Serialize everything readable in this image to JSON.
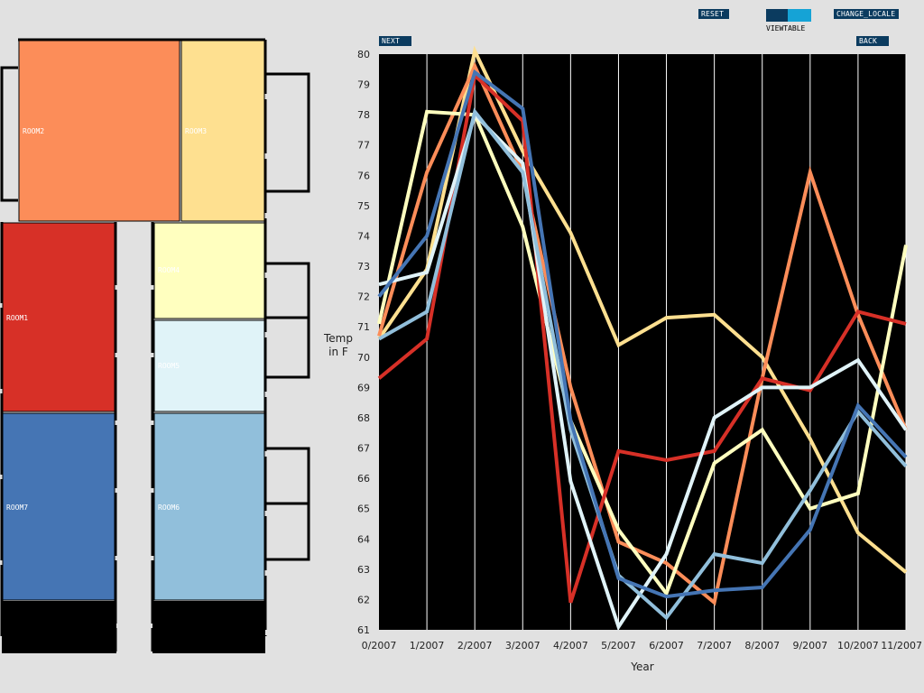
{
  "controls": {
    "next_label": "NEXT",
    "reset_label": "RESET",
    "change_locale_label": "CHANGE_LOCALE",
    "back_label": "BACK",
    "viewtable_label": "VIEWTABLE",
    "viewtable_colors": [
      "#0b3b5f",
      "#15a3d6"
    ]
  },
  "floorplan": {
    "rooms": [
      {
        "label": "ROOM2",
        "color": "#fc8d59"
      },
      {
        "label": "ROOM3",
        "color": "#fee090"
      },
      {
        "label": "ROOM1",
        "color": "#d73027"
      },
      {
        "label": "ROOM4",
        "color": "#ffffbf"
      },
      {
        "label": "ROOM5",
        "color": "#e0f3f8"
      },
      {
        "label": "ROOM7",
        "color": "#4575b4"
      },
      {
        "label": "ROOM6",
        "color": "#91bfdb"
      }
    ]
  },
  "chart_data": {
    "type": "line",
    "xlabel": "Year",
    "ylabel": "Temp in F",
    "categories": [
      "0/2007",
      "1/2007",
      "2/2007",
      "3/2007",
      "4/2007",
      "5/2007",
      "6/2007",
      "7/2007",
      "8/2007",
      "9/2007",
      "10/2007",
      "11/2007"
    ],
    "ylim": [
      61,
      80
    ],
    "yticks": [
      61,
      62,
      63,
      64,
      65,
      66,
      67,
      68,
      69,
      70,
      71,
      72,
      73,
      74,
      75,
      76,
      77,
      78,
      79,
      80
    ],
    "background": "#000000",
    "grid": "vertical",
    "series": [
      {
        "color": "#fee090",
        "values": [
          70.6,
          72.9,
          80.1,
          76.8,
          74.1,
          70.4,
          71.3,
          71.4,
          70.0,
          67.3,
          64.2,
          62.9
        ]
      },
      {
        "color": "#fc8d59",
        "values": [
          70.7,
          76.1,
          79.6,
          76.1,
          69.0,
          63.9,
          63.2,
          61.9,
          69.3,
          76.1,
          71.4,
          67.6
        ]
      },
      {
        "color": "#ffffbf",
        "values": [
          71.1,
          78.1,
          78.0,
          74.3,
          67.9,
          64.3,
          62.2,
          66.5,
          67.6,
          65.0,
          65.5,
          73.7
        ]
      },
      {
        "color": "#d73027",
        "values": [
          69.3,
          70.6,
          79.3,
          77.8,
          61.9,
          66.9,
          66.6,
          66.9,
          69.3,
          68.9,
          71.5,
          71.1
        ]
      },
      {
        "color": "#e0f3f8",
        "values": [
          72.4,
          72.8,
          78.0,
          76.4,
          65.9,
          61.1,
          63.5,
          68.0,
          69.0,
          69.0,
          69.9,
          67.6
        ]
      },
      {
        "color": "#91bfdb",
        "values": [
          70.6,
          71.5,
          78.1,
          76.1,
          67.6,
          62.8,
          61.4,
          63.5,
          63.2,
          65.6,
          68.2,
          66.4
        ]
      },
      {
        "color": "#4575b4",
        "values": [
          72.0,
          74.0,
          79.4,
          78.2,
          67.9,
          62.7,
          62.1,
          62.3,
          62.4,
          64.3,
          68.4,
          66.7
        ]
      }
    ]
  }
}
